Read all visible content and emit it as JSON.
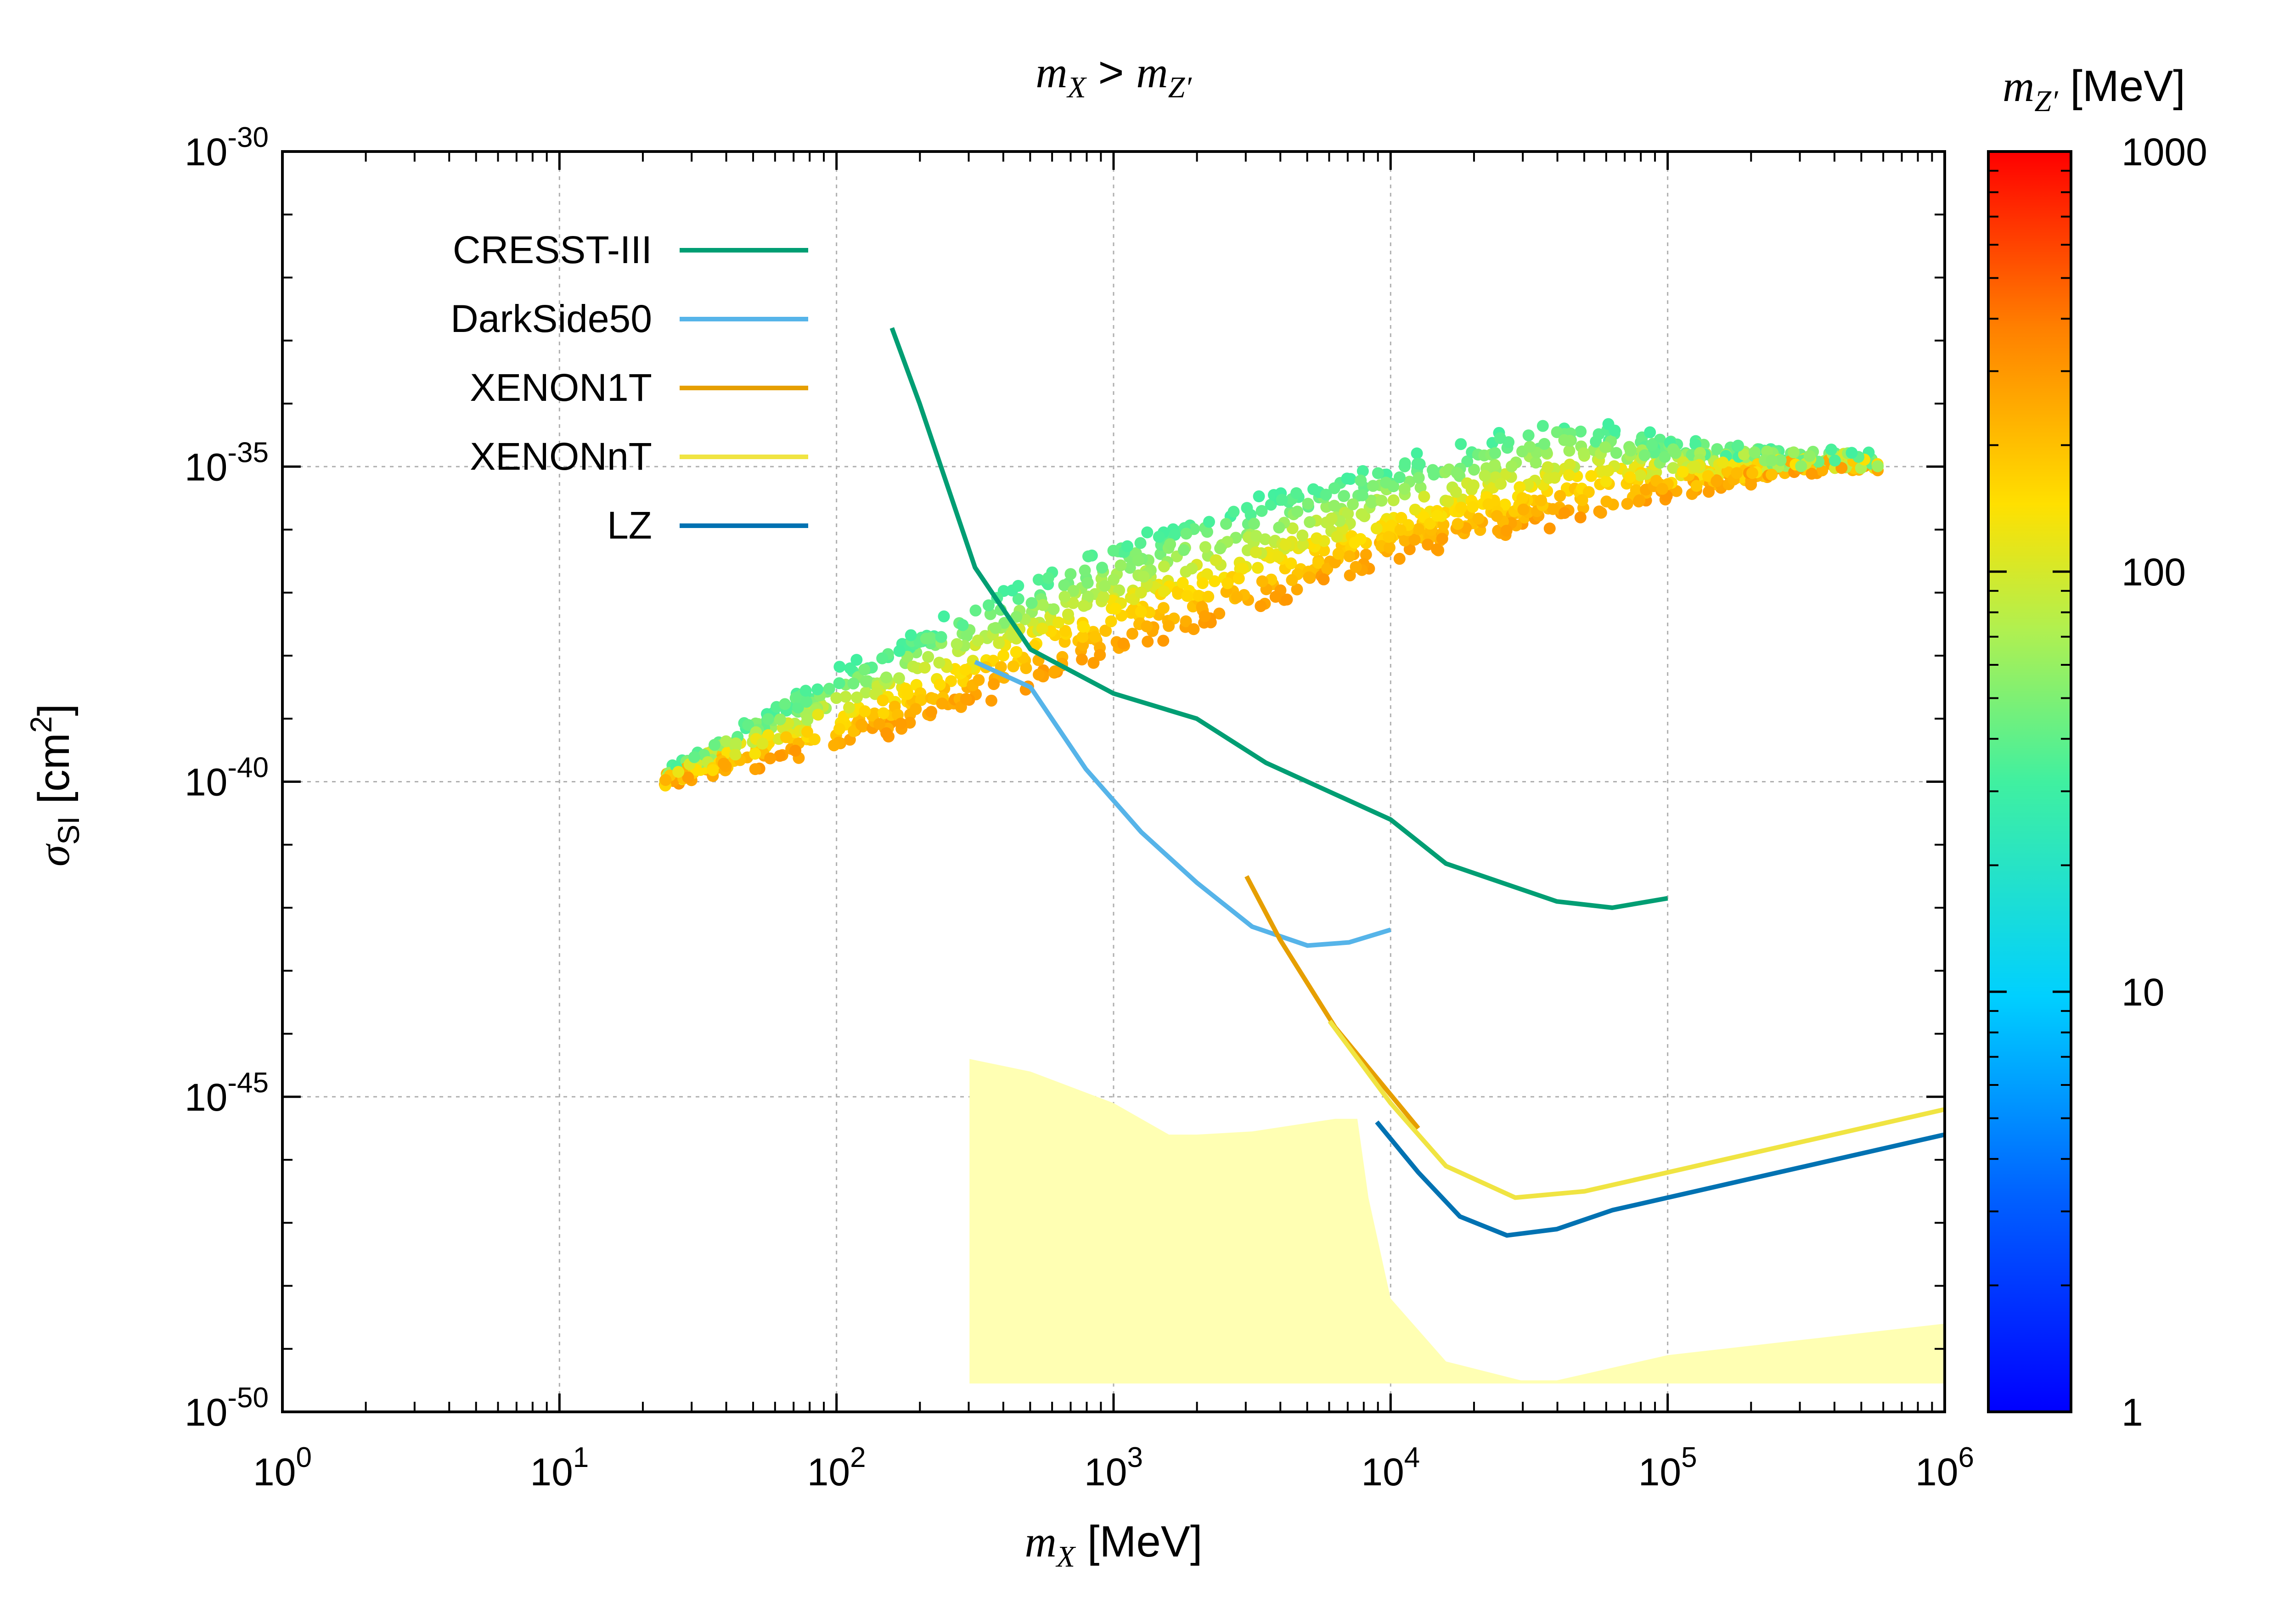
{
  "chart_data": {
    "type": "scatter",
    "title_parts": {
      "m": "m",
      "x_sub": "X",
      "gt": " > ",
      "z_sub": "Z′"
    },
    "xlabel_parts": {
      "m": "m",
      "sub": "X",
      "unit": " [MeV]"
    },
    "ylabel_parts": {
      "sigma": "σ",
      "sub": "SI",
      "unit_open": " [cm",
      "sup": "2",
      "unit_close": "]"
    },
    "colorbar_label_parts": {
      "m": "m",
      "sub": "Z′",
      "unit": " [MeV]"
    },
    "x_scale": "log",
    "y_scale": "log",
    "xlim": [
      1,
      1000000
    ],
    "ylim": [
      1e-50,
      1e-30
    ],
    "x_ticks": [
      {
        "base": "10",
        "exp": "0"
      },
      {
        "base": "10",
        "exp": "1"
      },
      {
        "base": "10",
        "exp": "2"
      },
      {
        "base": "10",
        "exp": "3"
      },
      {
        "base": "10",
        "exp": "4"
      },
      {
        "base": "10",
        "exp": "5"
      },
      {
        "base": "10",
        "exp": "6"
      }
    ],
    "y_ticks": [
      {
        "base": "10",
        "exp": "-30"
      },
      {
        "base": "10",
        "exp": "-35"
      },
      {
        "base": "10",
        "exp": "-40"
      },
      {
        "base": "10",
        "exp": "-45"
      },
      {
        "base": "10",
        "exp": "-50"
      }
    ],
    "grid": true,
    "colorbar": {
      "scale": "log",
      "range": [
        1,
        1000
      ],
      "tick_labels": [
        "1",
        "10",
        "100",
        "1000"
      ],
      "tick_values": [
        1,
        10,
        100,
        1000
      ]
    },
    "scatter_region": {
      "description_units": "log10 mX [MeV], log10 sigma [cm^2]",
      "x_range_MeV": [
        24,
        580000
      ],
      "upper_edge": [
        [
          1.38,
          -39.85
        ],
        [
          2.0,
          -38.3
        ],
        [
          3.0,
          -36.2
        ],
        [
          4.0,
          -35.0
        ],
        [
          4.6,
          -34.3
        ],
        [
          5.0,
          -34.6
        ],
        [
          5.5,
          -34.85
        ]
      ],
      "lower_edge": [
        [
          1.38,
          -40.0
        ],
        [
          2.0,
          -39.5
        ],
        [
          3.0,
          -38.0
        ],
        [
          4.0,
          -36.5
        ],
        [
          5.0,
          -35.5
        ],
        [
          5.5,
          -35.0
        ],
        [
          5.76,
          -35.0
        ]
      ],
      "color_value_range_MeV": [
        20,
        300
      ]
    },
    "legend_position": "top-left",
    "series": [
      {
        "name": "CRESST-III",
        "color": "#009e73",
        "log_points": [
          [
            2.2,
            -32.8
          ],
          [
            2.3,
            -34.0
          ],
          [
            2.5,
            -36.6
          ],
          [
            2.7,
            -37.9
          ],
          [
            3.0,
            -38.6
          ],
          [
            3.3,
            -39.0
          ],
          [
            3.55,
            -39.7
          ],
          [
            3.8,
            -40.2
          ],
          [
            4.0,
            -40.6
          ],
          [
            4.2,
            -41.3
          ],
          [
            4.6,
            -41.9
          ],
          [
            4.8,
            -42.0
          ],
          [
            5.0,
            -41.85
          ]
        ]
      },
      {
        "name": "DarkSide50",
        "color": "#56b4e9",
        "log_points": [
          [
            2.5,
            -38.1
          ],
          [
            2.7,
            -38.5
          ],
          [
            2.9,
            -39.8
          ],
          [
            3.1,
            -40.8
          ],
          [
            3.3,
            -41.6
          ],
          [
            3.5,
            -42.3
          ],
          [
            3.7,
            -42.6
          ],
          [
            3.85,
            -42.55
          ],
          [
            4.0,
            -42.35
          ]
        ]
      },
      {
        "name": "XENON1T",
        "color": "#e69f00",
        "log_points": [
          [
            3.48,
            -41.5
          ],
          [
            3.6,
            -42.5
          ],
          [
            3.7,
            -43.2
          ],
          [
            3.8,
            -43.9
          ],
          [
            3.95,
            -44.7
          ],
          [
            4.1,
            -45.5
          ]
        ]
      },
      {
        "name": "XENONnT",
        "color": "#f0e442",
        "log_points": [
          [
            3.78,
            -43.8
          ],
          [
            4.0,
            -45.1
          ],
          [
            4.2,
            -46.1
          ],
          [
            4.45,
            -46.6
          ],
          [
            4.7,
            -46.5
          ],
          [
            5.0,
            -46.2
          ],
          [
            5.5,
            -45.7
          ],
          [
            6.0,
            -45.2
          ]
        ]
      },
      {
        "name": "LZ",
        "color": "#0072b2",
        "log_points": [
          [
            3.95,
            -45.4
          ],
          [
            4.1,
            -46.2
          ],
          [
            4.25,
            -46.9
          ],
          [
            4.42,
            -47.2
          ],
          [
            4.6,
            -47.1
          ],
          [
            4.8,
            -46.8
          ],
          [
            5.0,
            -46.6
          ],
          [
            5.5,
            -46.1
          ],
          [
            6.0,
            -45.6
          ]
        ]
      }
    ],
    "shaded_region": {
      "color": "#ffffb3",
      "upper_edge_log": [
        [
          2.48,
          -44.4
        ],
        [
          2.7,
          -44.6
        ],
        [
          3.0,
          -45.1
        ],
        [
          3.2,
          -45.6
        ],
        [
          3.3,
          -45.6
        ],
        [
          3.5,
          -45.55
        ],
        [
          3.8,
          -45.35
        ],
        [
          3.88,
          -45.35
        ],
        [
          3.92,
          -46.6
        ],
        [
          4.0,
          -48.2
        ],
        [
          4.2,
          -49.2
        ],
        [
          4.47,
          -49.5
        ],
        [
          4.6,
          -49.5
        ],
        [
          5.0,
          -49.1
        ],
        [
          5.5,
          -48.85
        ],
        [
          6.0,
          -48.6
        ]
      ],
      "floor_log": -49.55
    }
  }
}
